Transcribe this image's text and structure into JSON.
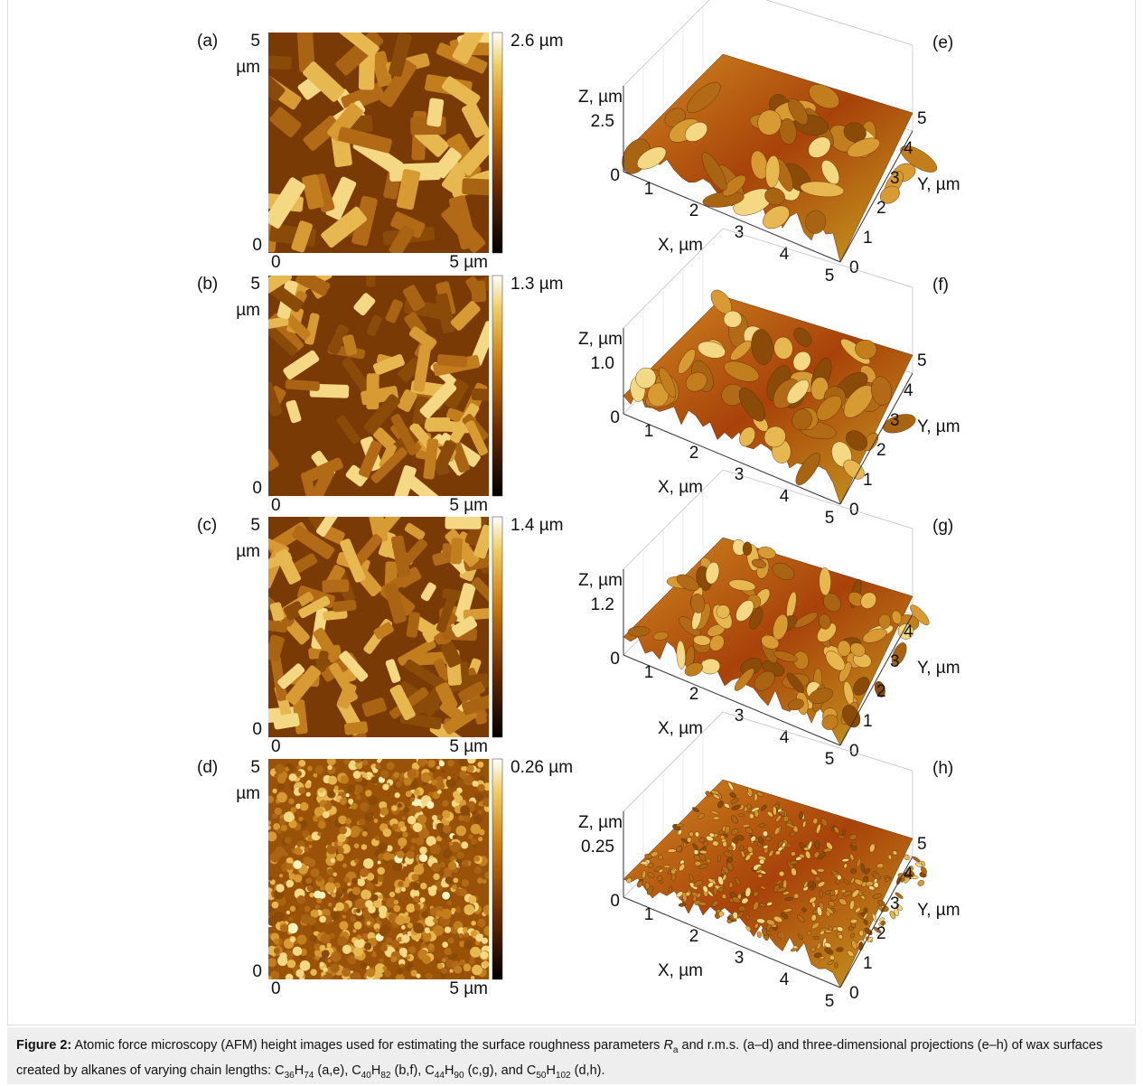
{
  "panels_2d": [
    {
      "label": "(a)",
      "y_top": "5",
      "y_unit": "µm",
      "y_bottom": "0",
      "x_left": "0",
      "x_right": "5 µm",
      "scale_max": "2.6 µm"
    },
    {
      "label": "(b)",
      "y_top": "5",
      "y_unit": "µm",
      "y_bottom": "0",
      "x_left": "0",
      "x_right": "5 µm",
      "scale_max": "1.3 µm"
    },
    {
      "label": "(c)",
      "y_top": "5",
      "y_unit": "µm",
      "y_bottom": "0",
      "x_left": "0",
      "x_right": "5 µm",
      "scale_max": "1.4 µm"
    },
    {
      "label": "(d)",
      "y_top": "5",
      "y_unit": "µm",
      "y_bottom": "0",
      "x_left": "0",
      "x_right": "5 µm",
      "scale_max": "0.26 µm"
    }
  ],
  "panels_3d": [
    {
      "label": "(e)",
      "z_title": "Z, µm",
      "z_max": "2.5",
      "z_min": "0",
      "x_ticks": [
        "1",
        "2",
        "3",
        "4",
        "5"
      ],
      "x_title": "X, µm",
      "y_ticks": [
        "0",
        "1",
        "2",
        "3",
        "4",
        "5"
      ],
      "y_title": "Y, µm"
    },
    {
      "label": "(f)",
      "z_title": "Z, µm",
      "z_max": "1.0",
      "z_min": "0",
      "x_ticks": [
        "1",
        "2",
        "3",
        "4",
        "5"
      ],
      "x_title": "X, µm",
      "y_ticks": [
        "0",
        "1",
        "2",
        "3",
        "4",
        "5"
      ],
      "y_title": "Y, µm"
    },
    {
      "label": "(g)",
      "z_title": "Z, µm",
      "z_max": "1.2",
      "z_min": "0",
      "x_ticks": [
        "1",
        "2",
        "3",
        "4",
        "5"
      ],
      "x_title": "X, µm",
      "y_ticks": [
        "0",
        "1",
        "2",
        "3",
        "4"
      ],
      "y_title": "Y, µm"
    },
    {
      "label": "(h)",
      "z_title": "Z, µm",
      "z_max": "0.25",
      "z_min": "0",
      "x_ticks": [
        "1",
        "2",
        "3",
        "4",
        "5"
      ],
      "x_title": "X, µm",
      "y_ticks": [
        "0",
        "1",
        "2",
        "3",
        "4",
        "5"
      ],
      "y_title": "Y, µm"
    }
  ],
  "caption": {
    "label": "Figure 2:",
    "runs": [
      {
        "text": " Atomic force microscopy (AFM) height images used for estimating the surface roughness parameters "
      },
      {
        "italic": "R"
      },
      {
        "sub": "a"
      },
      {
        "text": " and r.m.s. (a–d) and three-dimensional projections (e–h) of wax surfaces created by alkanes of varying chain lengths: C"
      },
      {
        "sub": "36"
      },
      {
        "text": "H"
      },
      {
        "sub": "74"
      },
      {
        "text": " (a,e), C"
      },
      {
        "sub": "40"
      },
      {
        "text": "H"
      },
      {
        "sub": "82"
      },
      {
        "text": " (b,f), C"
      },
      {
        "sub": "44"
      },
      {
        "text": "H"
      },
      {
        "sub": "90"
      },
      {
        "text": " (c,g), and C"
      },
      {
        "sub": "50"
      },
      {
        "text": "H"
      },
      {
        "sub": "102"
      },
      {
        "text": " (d,h)."
      }
    ]
  }
}
